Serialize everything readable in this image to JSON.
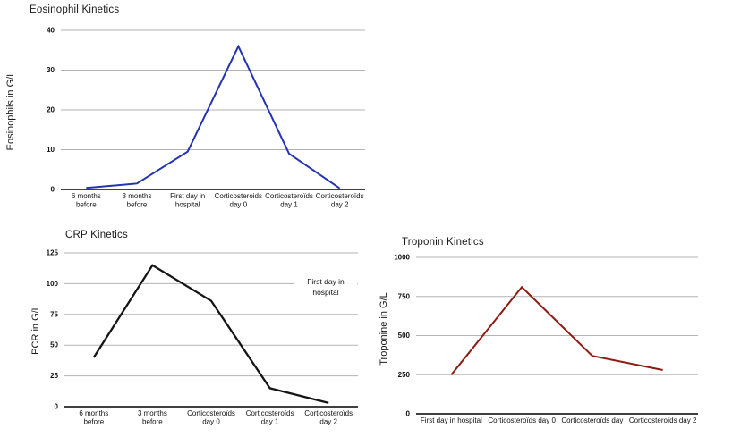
{
  "page": {
    "background": "#ffffff"
  },
  "style": {
    "grid_color": "#b3b3b3",
    "axis_color": "#000000",
    "tick_color": "#111111",
    "title_color": "#1a1a1a"
  },
  "chart_data": [
    {
      "id": "eosinophil",
      "type": "line",
      "title": "Eosinophil Kinetics",
      "ylabel": "Eosinophils in G/L",
      "xlabel": "",
      "categories": [
        "6 months\nbefore",
        "3 months\nbefore",
        "First day in\nhospital",
        "Corticosteroids\nday 0",
        "Corticosteroïds\nday 1",
        "Corticosteroïds\nday 2"
      ],
      "values": [
        0.4,
        1.5,
        9.5,
        36,
        9,
        0.3
      ],
      "ylim": [
        0,
        40
      ],
      "yticks": [
        0,
        10,
        20,
        30,
        40
      ],
      "grid": true,
      "legend": "none",
      "line_color": "#2433b2"
    },
    {
      "id": "crp",
      "type": "line",
      "title": "CRP Kinetics",
      "ylabel": "PCR in G/L",
      "xlabel": "",
      "categories": [
        "6 months\nbefore",
        "3 months\nbefore",
        "Corticosteroïds\nday 0",
        "Corticosteroïds\nday 1",
        "Corticosteroïds\nday 2"
      ],
      "values": [
        40,
        115,
        86,
        15,
        3
      ],
      "ylim": [
        0,
        125
      ],
      "yticks": [
        0,
        25,
        50,
        75,
        100,
        125
      ],
      "grid": true,
      "legend": "none",
      "line_color": "#141414",
      "annotation": "First day in\nhospital"
    },
    {
      "id": "troponin",
      "type": "line",
      "title": "Troponin Kinetics",
      "ylabel": "Troponine in G/L",
      "xlabel": "",
      "categories": [
        "First day in hospital",
        "Corticosteroïds day 0",
        "Corticosteroïds day",
        "Corticosteroïds day 2"
      ],
      "values": [
        250,
        810,
        370,
        280
      ],
      "ylim": [
        0,
        1000
      ],
      "yticks": [
        0,
        250,
        500,
        750,
        1000
      ],
      "grid": true,
      "legend": "none",
      "line_color": "#8d1c12"
    }
  ]
}
